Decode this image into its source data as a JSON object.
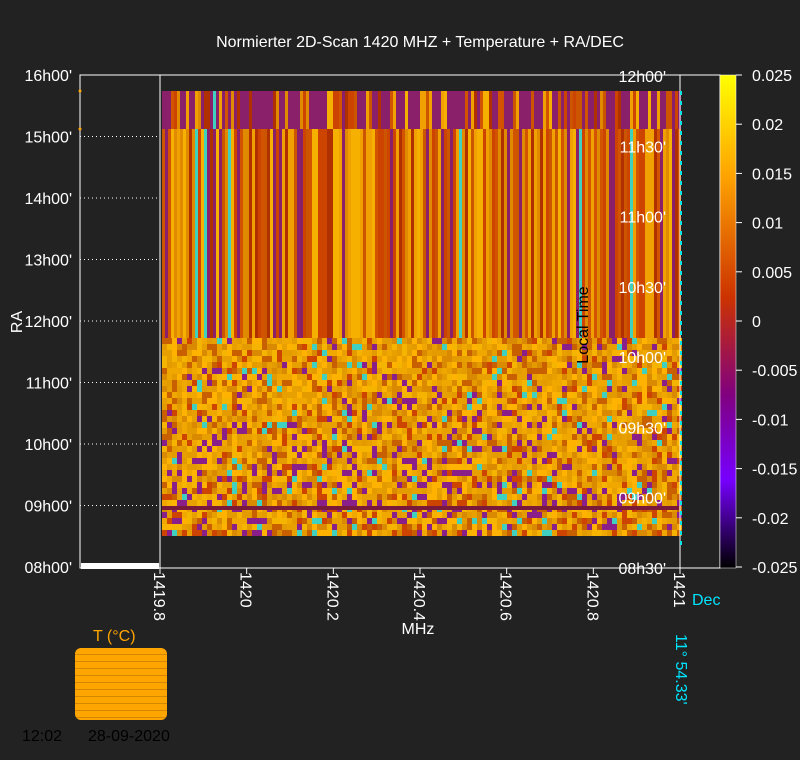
{
  "chart_data": {
    "type": "heatmap",
    "title": "Normierter 2D-Scan 1420 MHZ + Temperature + RA/DEC",
    "xlabel": "MHz",
    "ylabel_left": "RA",
    "ylabel_inner": "Local Time",
    "xlim": [
      1419.8,
      1421
    ],
    "x_ticks": [
      "1419.8",
      "1420",
      "1420.2",
      "1420.4",
      "1420.6",
      "1420.8",
      "1421"
    ],
    "ra_ticks": [
      "16h00'",
      "15h00'",
      "14h00'",
      "13h00'",
      "12h00'",
      "11h00'",
      "10h00'",
      "09h00'",
      "08h00'"
    ],
    "time_ticks": [
      "12h00'",
      "11h30'",
      "11h00'",
      "10h30'",
      "10h00'",
      "09h30'",
      "09h00'",
      "08h30'"
    ],
    "colorbar": {
      "min": -0.025,
      "max": 0.025,
      "ticks": [
        "0.025",
        "0.02",
        "0.015",
        "0.01",
        "0.005",
        "0",
        "-0.005",
        "-0.01",
        "-0.015",
        "-0.02",
        "-0.025"
      ],
      "colors": [
        "#ffff00",
        "#ffa500",
        "#cc3300",
        "#800080",
        "#7700ff",
        "#000000"
      ]
    },
    "temperature_label": "T (°C)",
    "dec_label": "Dec",
    "dec_value": "11° 54.33'",
    "time_stamp": "12:02",
    "date_stamp": "28-09-2020"
  }
}
